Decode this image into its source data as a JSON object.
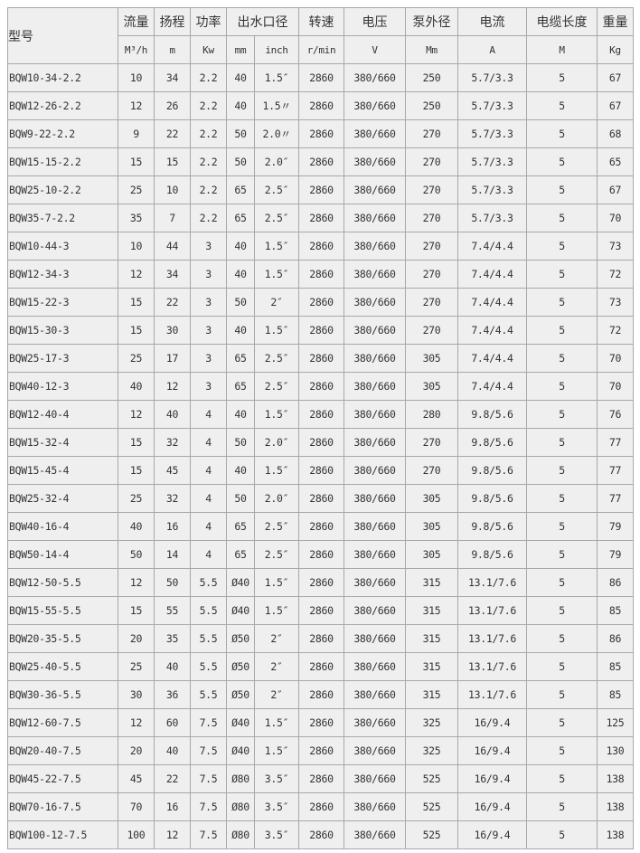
{
  "header": {
    "model": "型号",
    "groups": [
      "流量",
      "扬程",
      "功率",
      "出水口径",
      "转速",
      "电压",
      "泵外径",
      "电流",
      "电缆长度",
      "重量"
    ],
    "units": [
      "M³/h",
      "m",
      "Kw",
      "mm",
      "inch",
      "r/min",
      "V",
      "Mm",
      "A",
      "M",
      "Kg"
    ]
  },
  "rows": [
    [
      "BQW10-34-2.2",
      "10",
      "34",
      "2.2",
      "40",
      "1.5″",
      "2860",
      "380/660",
      "250",
      "5.7/3.3",
      "5",
      "67"
    ],
    [
      "BQW12-26-2.2",
      "12",
      "26",
      "2.2",
      "40",
      "1.5〃",
      "2860",
      "380/660",
      "250",
      "5.7/3.3",
      "5",
      "67"
    ],
    [
      "BQW9-22-2.2",
      "9",
      "22",
      "2.2",
      "50",
      "2.0〃",
      "2860",
      "380/660",
      "270",
      "5.7/3.3",
      "5",
      "68"
    ],
    [
      "BQW15-15-2.2",
      "15",
      "15",
      "2.2",
      "50",
      "2.0″",
      "2860",
      "380/660",
      "270",
      "5.7/3.3",
      "5",
      "65"
    ],
    [
      "BQW25-10-2.2",
      "25",
      "10",
      "2.2",
      "65",
      "2.5″",
      "2860",
      "380/660",
      "270",
      "5.7/3.3",
      "5",
      "67"
    ],
    [
      "BQW35-7-2.2",
      "35",
      "7",
      "2.2",
      "65",
      "2.5″",
      "2860",
      "380/660",
      "270",
      "5.7/3.3",
      "5",
      "70"
    ],
    [
      "BQW10-44-3",
      "10",
      "44",
      "3",
      "40",
      "1.5″",
      "2860",
      "380/660",
      "270",
      "7.4/4.4",
      "5",
      "73"
    ],
    [
      "BQW12-34-3",
      "12",
      "34",
      "3",
      "40",
      "1.5″",
      "2860",
      "380/660",
      "270",
      "7.4/4.4",
      "5",
      "72"
    ],
    [
      "BQW15-22-3",
      "15",
      "22",
      "3",
      "50",
      "2″",
      "2860",
      "380/660",
      "270",
      "7.4/4.4",
      "5",
      "73"
    ],
    [
      "BQW15-30-3",
      "15",
      "30",
      "3",
      "40",
      "1.5″",
      "2860",
      "380/660",
      "270",
      "7.4/4.4",
      "5",
      "72"
    ],
    [
      "BQW25-17-3",
      "25",
      "17",
      "3",
      "65",
      "2.5″",
      "2860",
      "380/660",
      "305",
      "7.4/4.4",
      "5",
      "70"
    ],
    [
      "BQW40-12-3",
      "40",
      "12",
      "3",
      "65",
      "2.5″",
      "2860",
      "380/660",
      "305",
      "7.4/4.4",
      "5",
      "70"
    ],
    [
      "BQW12-40-4",
      "12",
      "40",
      "4",
      "40",
      "1.5″",
      "2860",
      "380/660",
      "280",
      "9.8/5.6",
      "5",
      "76"
    ],
    [
      "BQW15-32-4",
      "15",
      "32",
      "4",
      "50",
      "2.0″",
      "2860",
      "380/660",
      "270",
      "9.8/5.6",
      "5",
      "77"
    ],
    [
      "BQW15-45-4",
      "15",
      "45",
      "4",
      "40",
      "1.5″",
      "2860",
      "380/660",
      "270",
      "9.8/5.6",
      "5",
      "77"
    ],
    [
      "BQW25-32-4",
      "25",
      "32",
      "4",
      "50",
      "2.0″",
      "2860",
      "380/660",
      "305",
      "9.8/5.6",
      "5",
      "77"
    ],
    [
      "BQW40-16-4",
      "40",
      "16",
      "4",
      "65",
      "2.5″",
      "2860",
      "380/660",
      "305",
      "9.8/5.6",
      "5",
      "79"
    ],
    [
      "BQW50-14-4",
      "50",
      "14",
      "4",
      "65",
      "2.5″",
      "2860",
      "380/660",
      "305",
      "9.8/5.6",
      "5",
      "79"
    ],
    [
      "BQW12-50-5.5",
      "12",
      "50",
      "5.5",
      "Ø40",
      "1.5″",
      "2860",
      "380/660",
      "315",
      "13.1/7.6",
      "5",
      "86"
    ],
    [
      "BQW15-55-5.5",
      "15",
      "55",
      "5.5",
      "Ø40",
      "1.5″",
      "2860",
      "380/660",
      "315",
      "13.1/7.6",
      "5",
      "85"
    ],
    [
      "BQW20-35-5.5",
      "20",
      "35",
      "5.5",
      "Ø50",
      "2″",
      "2860",
      "380/660",
      "315",
      "13.1/7.6",
      "5",
      "86"
    ],
    [
      "BQW25-40-5.5",
      "25",
      "40",
      "5.5",
      "Ø50",
      "2″",
      "2860",
      "380/660",
      "315",
      "13.1/7.6",
      "5",
      "85"
    ],
    [
      "BQW30-36-5.5",
      "30",
      "36",
      "5.5",
      "Ø50",
      "2″",
      "2860",
      "380/660",
      "315",
      "13.1/7.6",
      "5",
      "85"
    ],
    [
      "BQW12-60-7.5",
      "12",
      "60",
      "7.5",
      "Ø40",
      "1.5″",
      "2860",
      "380/660",
      "325",
      "16/9.4",
      "5",
      "125"
    ],
    [
      "BQW20-40-7.5",
      "20",
      "40",
      "7.5",
      "Ø40",
      "1.5″",
      "2860",
      "380/660",
      "325",
      "16/9.4",
      "5",
      "130"
    ],
    [
      "BQW45-22-7.5",
      "45",
      "22",
      "7.5",
      "Ø80",
      "3.5″",
      "2860",
      "380/660",
      "525",
      "16/9.4",
      "5",
      "138"
    ],
    [
      "BQW70-16-7.5",
      "70",
      "16",
      "7.5",
      "Ø80",
      "3.5″",
      "2860",
      "380/660",
      "525",
      "16/9.4",
      "5",
      "138"
    ],
    [
      "BQW100-12-7.5",
      "100",
      "12",
      "7.5",
      "Ø80",
      "3.5″",
      "2860",
      "380/660",
      "525",
      "16/9.4",
      "5",
      "138"
    ]
  ]
}
